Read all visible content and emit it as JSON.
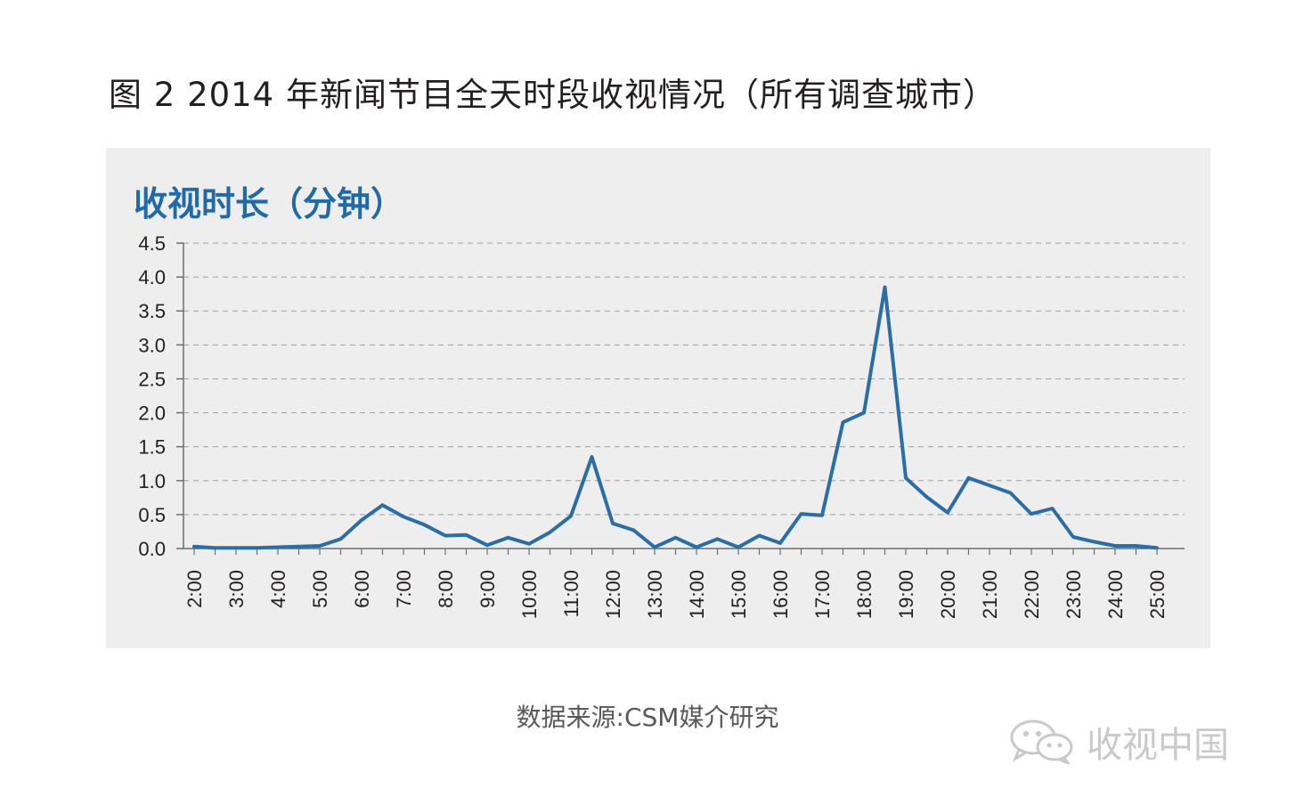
{
  "figure_title": "图 2  2014 年新闻节目全天时段收视情况（所有调查城市）",
  "source": "数据来源:CSM媒介研究",
  "watermark": "收视中国",
  "colors": {
    "line": "#2a6ea8",
    "ylabel": "#1f6aa9",
    "panel": "#eeeeee",
    "grid": "#a0a0a0"
  },
  "chart_data": {
    "type": "line",
    "ylabel": "收视时长（分钟）",
    "xlabel": "",
    "ylim": [
      0,
      4.5
    ],
    "yticks": [
      "0.0",
      "0.5",
      "1.0",
      "1.5",
      "2.0",
      "2.5",
      "3.0",
      "3.5",
      "4.0",
      "4.5"
    ],
    "xticks": [
      "2:00",
      "3:00",
      "4:00",
      "5:00",
      "6:00",
      "7:00",
      "8:00",
      "9:00",
      "10:00",
      "11:00",
      "12:00",
      "13:00",
      "14:00",
      "15:00",
      "16:00",
      "17:00",
      "18:00",
      "19:00",
      "20:00",
      "21:00",
      "22:00",
      "23:00",
      "24:00",
      "25:00"
    ],
    "grid": true,
    "series": [
      {
        "values": [
          0.03,
          0.01,
          0.01,
          0.01,
          0.02,
          0.03,
          0.04,
          0.14,
          0.42,
          0.64,
          0.47,
          0.35,
          0.19,
          0.2,
          0.05,
          0.16,
          0.07,
          0.24,
          0.48,
          1.35,
          0.37,
          0.27,
          0.02,
          0.16,
          0.02,
          0.14,
          0.02,
          0.19,
          0.08,
          0.51,
          0.49,
          1.86,
          2.0,
          3.85,
          1.04,
          0.76,
          0.53,
          1.04,
          0.93,
          0.82,
          0.51,
          0.59,
          0.17,
          0.1,
          0.04,
          0.04,
          0.01
        ]
      }
    ]
  }
}
